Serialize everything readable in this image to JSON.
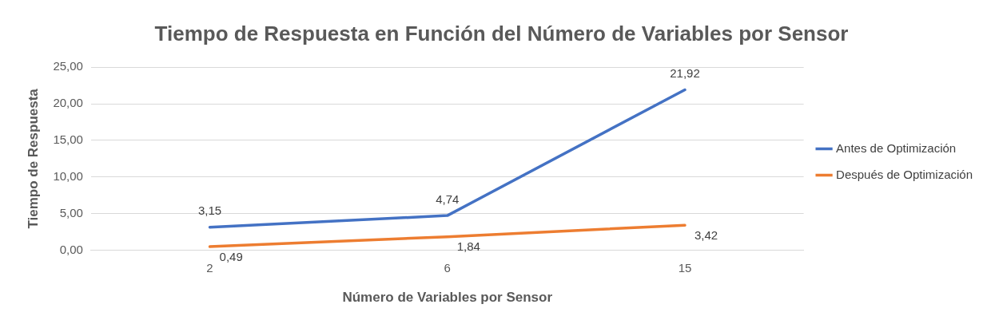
{
  "chart_data": {
    "type": "line",
    "title": "Tiempo de Respuesta en Función del Número de Variables por Sensor",
    "xlabel": "Número de Variables por Sensor",
    "ylabel": "Tiempo de Respuesta",
    "categories": [
      "2",
      "6",
      "15"
    ],
    "series": [
      {
        "name": "Antes de Optimización",
        "color": "#4472c4",
        "values": [
          3.15,
          4.74,
          21.92
        ],
        "value_labels": [
          "3,15",
          "4,74",
          "21,92"
        ]
      },
      {
        "name": "Después de Optimización",
        "color": "#ed7d31",
        "values": [
          0.49,
          1.84,
          3.42
        ],
        "value_labels": [
          "0,49",
          "1,84",
          "3,42"
        ]
      }
    ],
    "ylim": [
      0,
      25
    ],
    "yticks": [
      {
        "value": 0,
        "label": "0,00"
      },
      {
        "value": 5,
        "label": "5,00"
      },
      {
        "value": 10,
        "label": "10,00"
      },
      {
        "value": 15,
        "label": "15,00"
      },
      {
        "value": 20,
        "label": "20,00"
      },
      {
        "value": 25,
        "label": "25,00"
      }
    ],
    "grid": "y",
    "legend": "right",
    "marker": "none",
    "line_style": "solid"
  }
}
